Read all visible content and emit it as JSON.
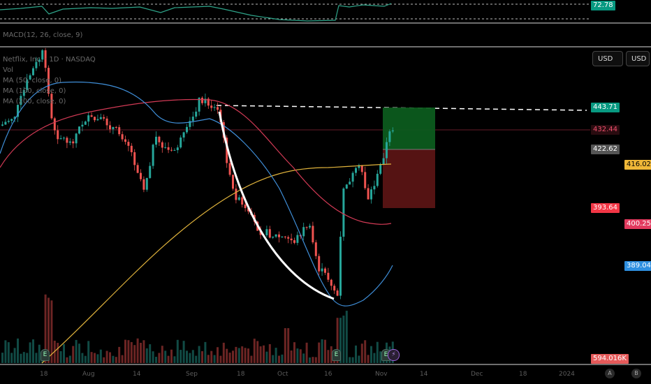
{
  "rsi_panel": {
    "value_label": "72.78"
  },
  "macd_panel": {
    "label": "MACD(12, 26, close, 9)"
  },
  "main_legend": {
    "symbol_line": "Netflix, Inc. · 1D · NASDAQ",
    "vol_label": "Vol",
    "ma_lines": [
      "MA (50, close, 0)",
      "MA (100, close, 0)",
      "MA (200, close, 0)"
    ]
  },
  "currency_buttons": [
    "USD",
    "USD"
  ],
  "price_tags": {
    "target": "443.71",
    "current": "432.44",
    "entry": "422.62",
    "ma_yellow": "416.02",
    "stop": "393.64",
    "ma_red": "400.25",
    "ma_blue": "389.04",
    "volume": "594.016K"
  },
  "x_axis_labels": [
    "18",
    "Aug",
    "14",
    "Sep",
    "18",
    "Oct",
    "16",
    "Nov",
    "14",
    "Dec",
    "18",
    "2024"
  ],
  "bottom_buttons": [
    "A",
    "B"
  ],
  "event_markers": [
    "E",
    "E",
    "E"
  ],
  "colors": {
    "up": "#26a69a",
    "down": "#ef5350",
    "ma_blue": "#3f8ed8",
    "ma_red": "#d23a55",
    "ma_yellow": "#e0b33c",
    "target_green": "#089981",
    "stop_red": "#f23645"
  }
}
